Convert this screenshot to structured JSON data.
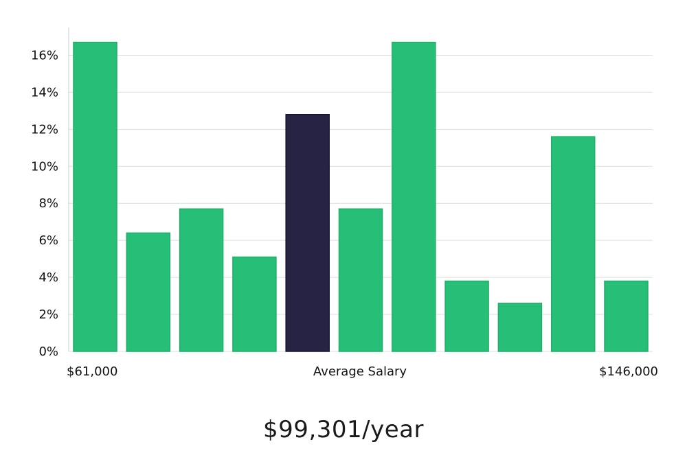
{
  "chart_data": {
    "type": "bar",
    "categories": [
      "1",
      "2",
      "3",
      "4",
      "5",
      "6",
      "7",
      "8",
      "9",
      "10",
      "11"
    ],
    "values": [
      16.7,
      6.4,
      7.7,
      5.1,
      12.8,
      7.7,
      16.7,
      3.8,
      2.6,
      11.6,
      3.8
    ],
    "highlight_index": 4,
    "ylim": [
      0,
      17.5
    ],
    "yticks": [
      0,
      2,
      4,
      6,
      8,
      10,
      12,
      14,
      16
    ],
    "ytick_suffix": "%",
    "x_left_label": "$61,000",
    "x_center_label": "Average Salary",
    "x_right_label": "$146,000",
    "grid": true,
    "colors": {
      "bar": "#27bf77",
      "highlight": "#272344",
      "grid": "#dddddd",
      "axis": "#cccccc"
    }
  },
  "summary": {
    "average": "$99,301/year"
  }
}
